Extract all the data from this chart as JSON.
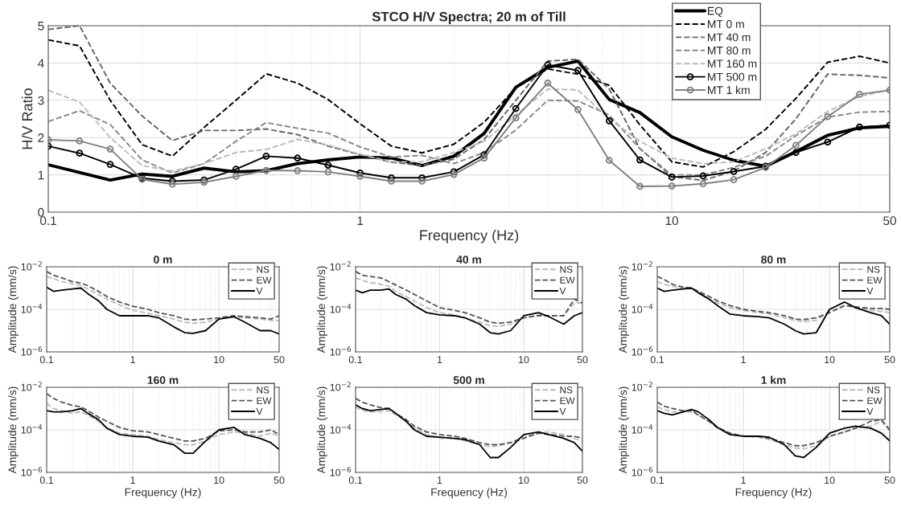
{
  "chart_data": [
    {
      "type": "line",
      "title": "STCO H/V Spectra; 20 m of Till",
      "xlabel": "Frequency (Hz)",
      "ylabel": "H/V Ratio",
      "log": "x",
      "xlim": [
        0.1,
        50
      ],
      "xticks": [
        0.1,
        1,
        10,
        50
      ],
      "ylim": [
        0,
        5
      ],
      "yticks": [
        0,
        1,
        2,
        3,
        4,
        5
      ],
      "grid": true,
      "legend": "top right",
      "x": [
        0.1,
        0.126,
        0.158,
        0.2,
        0.25,
        0.316,
        0.4,
        0.5,
        0.63,
        0.79,
        1,
        1.26,
        1.58,
        2,
        2.5,
        3.16,
        4,
        5,
        6.3,
        7.9,
        10,
        12.6,
        15.8,
        20,
        25,
        31.6,
        40,
        50
      ],
      "series": [
        {
          "name": "EQ",
          "color": "#000000",
          "line_style": "solid",
          "marker": "none",
          "x": [
            0.1,
            0.158,
            0.2,
            0.25,
            0.316,
            0.4,
            0.5,
            0.63,
            0.79,
            1,
            1.26,
            1.58,
            2,
            2.5,
            3.16,
            4,
            5,
            6.3,
            7.9,
            10,
            12.6,
            15.8,
            20,
            25,
            31.6,
            40,
            50
          ],
          "values": [
            1.27,
            0.86,
            1.02,
            0.96,
            1.18,
            1.08,
            1.11,
            1.3,
            1.4,
            1.48,
            1.45,
            1.25,
            1.5,
            2.11,
            3.35,
            3.88,
            4.05,
            3.02,
            2.67,
            2.02,
            1.66,
            1.39,
            1.23,
            1.62,
            2.06,
            2.26,
            2.3
          ]
        },
        {
          "name": "MT 0 m",
          "color": "#000000",
          "line_style": "dashed",
          "marker": "none",
          "values": [
            4.62,
            4.46,
            3.0,
            1.81,
            1.5,
            2.27,
            3.0,
            3.71,
            3.46,
            3.02,
            2.37,
            1.77,
            1.59,
            1.82,
            2.41,
            3.33,
            3.84,
            3.7,
            3.4,
            2.34,
            1.35,
            1.21,
            1.62,
            2.22,
            3.05,
            4.02,
            4.18,
            4.0
          ]
        },
        {
          "name": "MT 40 m",
          "color": "#666666",
          "line_style": "dashed",
          "marker": "none",
          "values": [
            4.9,
            5.0,
            3.46,
            2.58,
            1.92,
            2.19,
            2.19,
            2.23,
            2.08,
            1.77,
            1.54,
            1.34,
            1.25,
            1.42,
            1.95,
            3.0,
            4.05,
            4.1,
            3.3,
            1.7,
            0.95,
            0.85,
            1.1,
            1.6,
            2.5,
            3.7,
            3.67,
            3.6
          ]
        },
        {
          "name": "MT 80 m",
          "color": "#888888",
          "line_style": "dashed",
          "marker": "none",
          "values": [
            2.43,
            2.72,
            2.35,
            1.4,
            1.05,
            1.3,
            1.9,
            2.4,
            2.25,
            2.12,
            1.75,
            1.48,
            1.52,
            1.3,
            1.6,
            2.2,
            3.0,
            2.98,
            2.6,
            1.7,
            1.0,
            1.0,
            1.2,
            1.5,
            2.05,
            2.55,
            2.68,
            2.7
          ]
        },
        {
          "name": "MT 160 m",
          "color": "#bbbbbb",
          "line_style": "dashed",
          "marker": "none",
          "values": [
            3.27,
            2.95,
            2.0,
            1.25,
            1.1,
            1.3,
            1.6,
            1.68,
            1.95,
            1.8,
            1.55,
            1.35,
            1.35,
            1.6,
            1.9,
            2.6,
            3.3,
            3.28,
            2.5,
            1.9,
            1.45,
            1.3,
            1.35,
            1.7,
            2.1,
            2.7,
            3.1,
            3.28
          ]
        },
        {
          "name": "MT 500 m",
          "color": "#000000",
          "line_style": "solid",
          "marker": "circle",
          "values": [
            1.77,
            1.58,
            1.28,
            0.91,
            0.83,
            0.86,
            1.15,
            1.5,
            1.45,
            1.26,
            1.05,
            0.92,
            0.92,
            1.08,
            1.54,
            2.78,
            3.95,
            3.8,
            2.45,
            1.4,
            0.94,
            0.97,
            1.09,
            1.23,
            1.6,
            1.88,
            2.28,
            2.33
          ]
        },
        {
          "name": "MT 1 km",
          "color": "#808080",
          "line_style": "solid",
          "marker": "circle",
          "values": [
            1.94,
            1.91,
            1.69,
            0.88,
            0.75,
            0.8,
            0.96,
            1.12,
            1.11,
            1.08,
            0.96,
            0.83,
            0.83,
            1.01,
            1.45,
            2.53,
            3.46,
            2.75,
            1.39,
            0.69,
            0.7,
            0.76,
            0.87,
            1.2,
            1.79,
            2.56,
            3.16,
            3.27
          ]
        }
      ]
    },
    {
      "type": "line",
      "title": "0 m",
      "ylabel": "Amplitude (mm/s)",
      "log": "xy",
      "xlim": [
        0.1,
        50
      ],
      "xticks": [
        0.1,
        1,
        10,
        50
      ],
      "ylim": [
        1e-06,
        0.01
      ],
      "yticks": [
        {
          "value": 1e-06,
          "label": "10$^{−6}$"
        },
        {
          "value": 0.0001,
          "label": "10$^{−4}$"
        },
        {
          "value": 0.01,
          "label": "10$^{−2}$"
        }
      ],
      "grid": true,
      "legend": "top right",
      "x": [
        0.1,
        0.12,
        0.15,
        0.2,
        0.25,
        0.3,
        0.4,
        0.5,
        0.7,
        1,
        1.5,
        2,
        3,
        4,
        5,
        7,
        10,
        15,
        20,
        30,
        40,
        50
      ],
      "series": [
        {
          "name": "NS",
          "color": "#bbbbbb",
          "line_style": "dashed",
          "values": [
            0.0035,
            0.0028,
            0.002,
            0.0016,
            0.0013,
            0.0009,
            0.0005,
            0.0003,
            0.00016,
            9e-05,
            6.5e-05,
            5e-05,
            3.5e-05,
            2.5e-05,
            2.2e-05,
            2.5e-05,
            3.5e-05,
            4.5e-05,
            4e-05,
            3.5e-05,
            3e-05,
            3e-05
          ]
        },
        {
          "name": "EW",
          "color": "#555555",
          "line_style": "dashed",
          "values": [
            0.006,
            0.004,
            0.003,
            0.002,
            0.0017,
            0.0013,
            0.0007,
            0.0004,
            0.00022,
            0.00014,
            0.0001,
            7e-05,
            5e-05,
            3.5e-05,
            3.2e-05,
            3.5e-05,
            4e-05,
            5e-05,
            4.5e-05,
            4e-05,
            3.5e-05,
            5e-05
          ]
        },
        {
          "name": "V",
          "color": "#000000",
          "line_style": "solid",
          "values": [
            0.0011,
            0.0007,
            0.0008,
            0.0009,
            0.001,
            0.00055,
            0.00025,
            0.0001,
            5e-05,
            5e-05,
            5e-05,
            4e-05,
            1.5e-05,
            8e-06,
            7.5e-06,
            1e-05,
            3.5e-05,
            4.5e-05,
            2.5e-05,
            1e-05,
            1e-05,
            7e-06
          ]
        }
      ]
    },
    {
      "type": "line",
      "title": "40 m",
      "ylabel": "Amplitude (mm/s)",
      "log": "xy",
      "xlim": [
        0.1,
        50
      ],
      "xticks": [
        0.1,
        1,
        10,
        50
      ],
      "ylim": [
        1e-06,
        0.01
      ],
      "yticks": [
        {
          "value": 1e-06,
          "label": "10$^{−6}$"
        },
        {
          "value": 0.0001,
          "label": "10$^{−4}$"
        },
        {
          "value": 0.01,
          "label": "10$^{−2}$"
        }
      ],
      "grid": true,
      "legend": "top right",
      "x": [
        0.1,
        0.12,
        0.15,
        0.2,
        0.25,
        0.3,
        0.4,
        0.5,
        0.7,
        1,
        1.5,
        2,
        3,
        4,
        5,
        7,
        10,
        15,
        20,
        30,
        40,
        50
      ],
      "series": [
        {
          "name": "NS",
          "color": "#bbbbbb",
          "line_style": "dashed",
          "values": [
            0.003,
            0.0023,
            0.0018,
            0.0015,
            0.0012,
            0.0007,
            0.0004,
            0.00025,
            0.00012,
            7e-05,
            5.5e-05,
            4e-05,
            2.5e-05,
            1.7e-05,
            1.6e-05,
            2e-05,
            4e-05,
            5.5e-05,
            5e-05,
            5e-05,
            0.0002,
            0.0002
          ]
        },
        {
          "name": "EW",
          "color": "#555555",
          "line_style": "dashed",
          "values": [
            0.006,
            0.004,
            0.0035,
            0.003,
            0.002,
            0.0014,
            0.0008,
            0.0005,
            0.00025,
            0.00012,
            9e-05,
            7e-05,
            4e-05,
            2.5e-05,
            2.2e-05,
            2.5e-05,
            4e-05,
            5e-05,
            5e-05,
            5e-05,
            0.0003,
            0.0002
          ]
        },
        {
          "name": "V",
          "color": "#000000",
          "line_style": "solid",
          "values": [
            0.0008,
            0.0006,
            0.0008,
            0.0008,
            0.0009,
            0.0005,
            0.0003,
            0.00015,
            7e-05,
            5.5e-05,
            5e-05,
            4e-05,
            2e-05,
            8e-06,
            7e-06,
            1e-05,
            5e-05,
            7e-05,
            4.5e-05,
            2e-05,
            5e-05,
            7e-05
          ]
        }
      ]
    },
    {
      "type": "line",
      "title": "80 m",
      "ylabel": "Amplitude (mm/s)",
      "log": "xy",
      "xlim": [
        0.1,
        50
      ],
      "xticks": [
        0.1,
        1,
        10,
        50
      ],
      "ylim": [
        1e-06,
        0.01
      ],
      "yticks": [
        {
          "value": 1e-06,
          "label": "10$^{−6}$"
        },
        {
          "value": 0.0001,
          "label": "10$^{−4}$"
        },
        {
          "value": 0.01,
          "label": "10$^{−2}$"
        }
      ],
      "grid": true,
      "legend": "top right",
      "x": [
        0.1,
        0.12,
        0.15,
        0.2,
        0.25,
        0.3,
        0.4,
        0.5,
        0.7,
        1,
        1.5,
        2,
        3,
        4,
        5,
        7,
        10,
        15,
        20,
        30,
        40,
        50
      ],
      "series": [
        {
          "name": "NS",
          "color": "#bbbbbb",
          "line_style": "dashed",
          "values": [
            0.002,
            0.0015,
            0.0012,
            0.001,
            0.0009,
            0.0006,
            0.0003,
            0.0002,
            0.00012,
            9e-05,
            7e-05,
            6e-05,
            4e-05,
            3e-05,
            2.7e-05,
            3e-05,
            8e-05,
            0.00015,
            0.00013,
            9e-05,
            8e-05,
            7e-05
          ]
        },
        {
          "name": "EW",
          "color": "#555555",
          "line_style": "dashed",
          "values": [
            0.0035,
            0.0025,
            0.0015,
            0.0011,
            0.001,
            0.0007,
            0.0004,
            0.00025,
            0.00015,
            0.0001,
            8e-05,
            7e-05,
            5e-05,
            3.5e-05,
            3.3e-05,
            4e-05,
            7e-05,
            0.00015,
            0.00013,
            0.00011,
            0.00011,
            0.0001
          ]
        },
        {
          "name": "V",
          "color": "#000000",
          "line_style": "solid",
          "values": [
            0.001,
            0.0007,
            0.0008,
            0.0009,
            0.001,
            0.0006,
            0.0003,
            0.00015,
            6e-05,
            5e-05,
            4.5e-05,
            4e-05,
            2e-05,
            1e-05,
            7e-06,
            8e-06,
            0.0001,
            0.00022,
            0.00012,
            7e-05,
            5e-05,
            2e-05
          ]
        }
      ]
    },
    {
      "type": "line",
      "title": "160 m",
      "xlabel": "Frequency (Hz)",
      "ylabel": "Amplitude (mm/s)",
      "log": "xy",
      "xlim": [
        0.1,
        50
      ],
      "xticks": [
        0.1,
        1,
        10,
        50
      ],
      "ylim": [
        1e-06,
        0.01
      ],
      "yticks": [
        {
          "value": 1e-06,
          "label": "10$^{−6}$"
        },
        {
          "value": 0.0001,
          "label": "10$^{−4}$"
        },
        {
          "value": 0.01,
          "label": "10$^{−2}$"
        }
      ],
      "grid": true,
      "legend": "top right",
      "x": [
        0.1,
        0.12,
        0.15,
        0.2,
        0.25,
        0.3,
        0.4,
        0.5,
        0.7,
        1,
        1.5,
        2,
        3,
        4,
        5,
        7,
        10,
        15,
        20,
        30,
        40,
        50
      ],
      "series": [
        {
          "name": "NS",
          "color": "#bbbbbb",
          "line_style": "dashed",
          "values": [
            0.0018,
            0.001,
            0.0008,
            0.0006,
            0.0007,
            0.0005,
            0.00025,
            0.00012,
            7e-05,
            6e-05,
            5e-05,
            3.5e-05,
            2.5e-05,
            2e-05,
            2e-05,
            3e-05,
            6e-05,
            8e-05,
            7e-05,
            5e-05,
            7e-05,
            5e-05
          ]
        },
        {
          "name": "EW",
          "color": "#555555",
          "line_style": "dashed",
          "values": [
            0.005,
            0.003,
            0.002,
            0.0014,
            0.0012,
            0.0008,
            0.0004,
            0.00025,
            0.00013,
            9e-05,
            8e-05,
            6e-05,
            4e-05,
            3e-05,
            3e-05,
            4e-05,
            9e-05,
            0.0001,
            8e-05,
            8e-05,
            0.0001,
            6e-05
          ]
        },
        {
          "name": "V",
          "color": "#000000",
          "line_style": "solid",
          "values": [
            0.0008,
            0.0007,
            0.0007,
            0.0008,
            0.001,
            0.0006,
            0.0003,
            0.00012,
            6e-05,
            5e-05,
            4.5e-05,
            3e-05,
            2e-05,
            8e-06,
            8e-06,
            3e-05,
            0.0001,
            0.00013,
            6e-05,
            4e-05,
            2.5e-05,
            1.2e-05
          ]
        }
      ]
    },
    {
      "type": "line",
      "title": "500 m",
      "xlabel": "Frequency (Hz)",
      "ylabel": "Amplitude (mm/s)",
      "log": "xy",
      "xlim": [
        0.1,
        50
      ],
      "xticks": [
        0.1,
        1,
        10,
        50
      ],
      "ylim": [
        1e-06,
        0.01
      ],
      "yticks": [
        {
          "value": 1e-06,
          "label": "10$^{−6}$"
        },
        {
          "value": 0.0001,
          "label": "10$^{−4}$"
        },
        {
          "value": 0.01,
          "label": "10$^{−2}$"
        }
      ],
      "grid": true,
      "legend": "top right",
      "x": [
        0.1,
        0.12,
        0.15,
        0.2,
        0.25,
        0.3,
        0.4,
        0.5,
        0.7,
        1,
        1.5,
        2,
        3,
        4,
        5,
        7,
        10,
        15,
        20,
        30,
        40,
        50
      ],
      "series": [
        {
          "name": "NS",
          "color": "#bbbbbb",
          "line_style": "dashed",
          "values": [
            0.0012,
            0.0008,
            0.0007,
            0.0007,
            0.0008,
            0.0005,
            0.00025,
            0.00012,
            6e-05,
            4e-05,
            4e-05,
            3e-05,
            2e-05,
            1.6e-05,
            1.8e-05,
            2.5e-05,
            5e-05,
            7e-05,
            8e-05,
            6e-05,
            4e-05,
            3e-05
          ]
        },
        {
          "name": "EW",
          "color": "#555555",
          "line_style": "dashed",
          "values": [
            0.003,
            0.002,
            0.0015,
            0.0011,
            0.001,
            0.0006,
            0.0003,
            0.00015,
            8e-05,
            6e-05,
            5e-05,
            4e-05,
            2.5e-05,
            2e-05,
            2e-05,
            2.5e-05,
            4e-05,
            7e-05,
            6e-05,
            5e-05,
            5e-05,
            4e-05
          ]
        },
        {
          "name": "V",
          "color": "#000000",
          "line_style": "solid",
          "values": [
            0.0015,
            0.001,
            0.0008,
            0.0009,
            0.001,
            0.0006,
            0.00025,
            0.0001,
            5e-05,
            4.5e-05,
            4e-05,
            3.5e-05,
            2e-05,
            5e-06,
            5e-06,
            1.5e-05,
            6e-05,
            8e-05,
            6e-05,
            4e-05,
            2.5e-05,
            1e-05
          ]
        }
      ]
    },
    {
      "type": "line",
      "title": "1 km",
      "xlabel": "Frequency (Hz)",
      "ylabel": "Amplitude (mm/s)",
      "log": "xy",
      "xlim": [
        0.1,
        50
      ],
      "xticks": [
        0.1,
        1,
        10,
        50
      ],
      "ylim": [
        1e-06,
        0.01
      ],
      "yticks": [
        {
          "value": 1e-06,
          "label": "10$^{−6}$"
        },
        {
          "value": 0.0001,
          "label": "10$^{−4}$"
        },
        {
          "value": 0.01,
          "label": "10$^{−2}$"
        }
      ],
      "grid": true,
      "legend": "top right",
      "x": [
        0.1,
        0.12,
        0.15,
        0.2,
        0.25,
        0.3,
        0.4,
        0.5,
        0.7,
        1,
        1.5,
        2,
        3,
        4,
        5,
        7,
        10,
        15,
        20,
        30,
        40,
        50
      ],
      "series": [
        {
          "name": "NS",
          "color": "#bbbbbb",
          "line_style": "dashed",
          "values": [
            0.0012,
            0.0009,
            0.0007,
            0.0007,
            0.0007,
            0.0005,
            0.00025,
            0.00012,
            6e-05,
            5e-05,
            4.5e-05,
            3.5e-05,
            2e-05,
            1.4e-05,
            1.3e-05,
            1.8e-05,
            5e-05,
            8e-05,
            0.00012,
            0.00015,
            0.00025,
            9e-05
          ]
        },
        {
          "name": "EW",
          "color": "#555555",
          "line_style": "dashed",
          "values": [
            0.002,
            0.0013,
            0.001,
            0.0008,
            0.0008,
            0.0005,
            0.00025,
            0.00013,
            7e-05,
            5e-05,
            5e-05,
            4e-05,
            2.5e-05,
            1.8e-05,
            1.8e-05,
            2.5e-05,
            5e-05,
            8e-05,
            0.00012,
            0.00025,
            0.0003,
            0.0001
          ]
        },
        {
          "name": "V",
          "color": "#000000",
          "line_style": "solid",
          "values": [
            0.0008,
            0.0006,
            0.0005,
            0.0007,
            0.0009,
            0.0007,
            0.0003,
            0.00013,
            6e-05,
            5e-05,
            5e-05,
            4.5e-05,
            2e-05,
            6e-06,
            5e-06,
            1.5e-05,
            7e-05,
            0.00012,
            0.00015,
            0.00012,
            7e-05,
            3e-05
          ]
        }
      ]
    }
  ]
}
